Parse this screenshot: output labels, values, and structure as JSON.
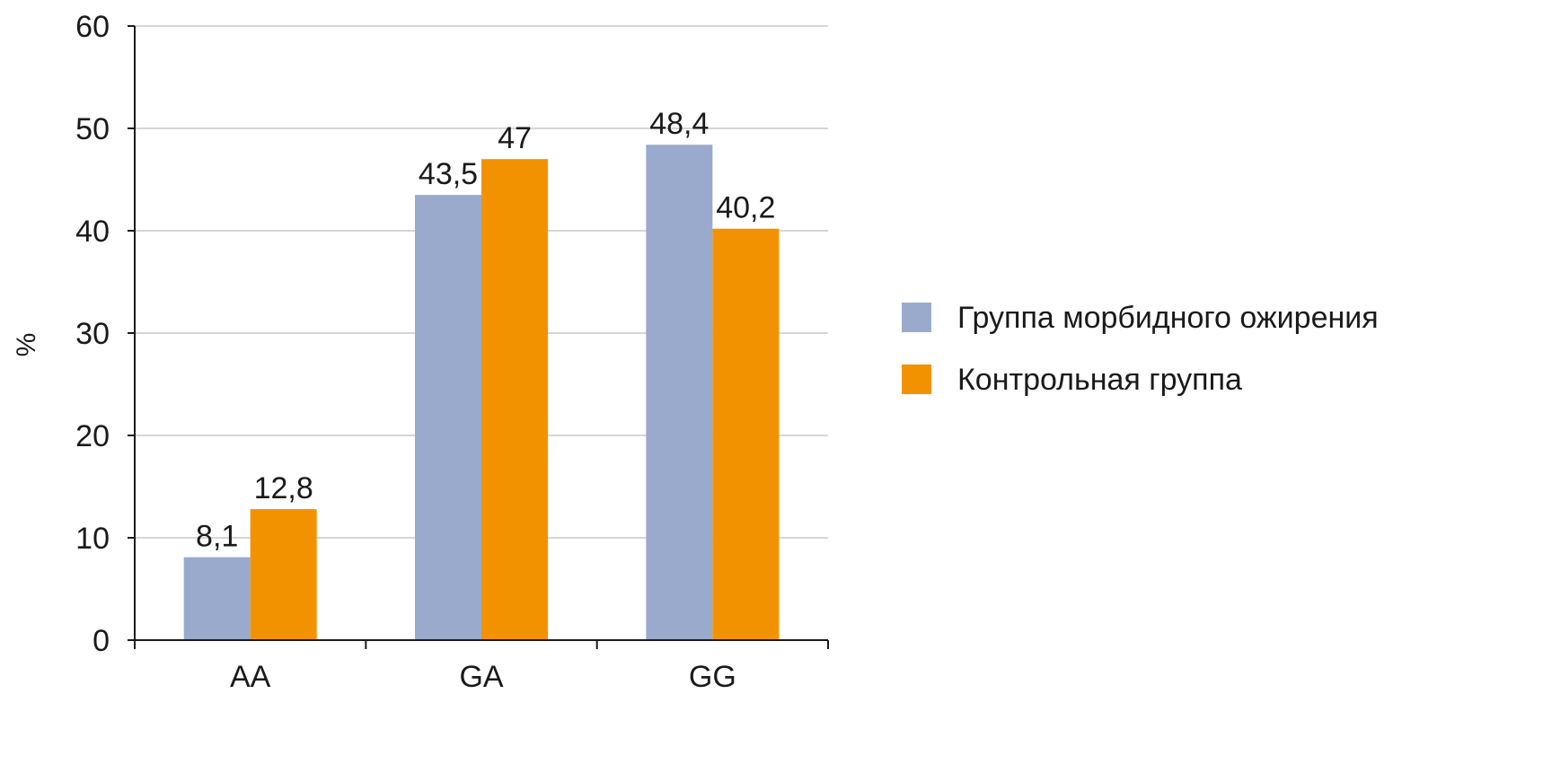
{
  "chart_data": {
    "type": "bar",
    "categories": [
      "AA",
      "GA",
      "GG"
    ],
    "series": [
      {
        "name": "Группа морбидного ожирения",
        "values": [
          8.1,
          43.5,
          48.4
        ],
        "labels": [
          "8,1",
          "43,5",
          "48,4"
        ],
        "color": "#9aaacd"
      },
      {
        "name": "Контрольная группа",
        "values": [
          12.8,
          47,
          40.2
        ],
        "labels": [
          "12,8",
          "47",
          "40,2"
        ],
        "color": "#f39200"
      }
    ],
    "ylabel": "%",
    "xlabel": "",
    "ylim": [
      0,
      60
    ],
    "yticks": [
      0,
      10,
      20,
      30,
      40,
      50,
      60
    ],
    "ytick_labels": [
      "0",
      "10",
      "20",
      "30",
      "40",
      "50",
      "60"
    ],
    "grid": true,
    "legend_position": "right"
  }
}
